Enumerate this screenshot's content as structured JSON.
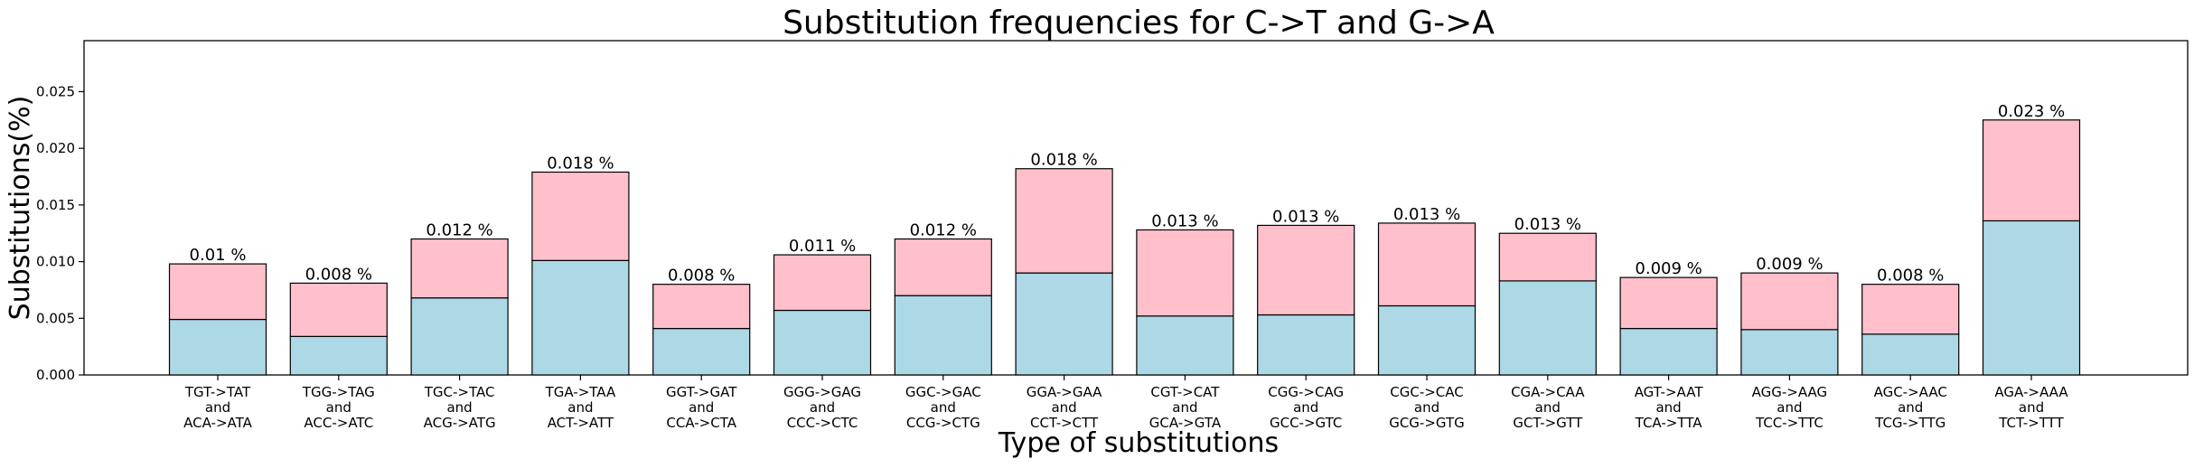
{
  "chart_data": {
    "type": "bar",
    "stacked": true,
    "title": "Substitution frequencies for C->T and G->A",
    "xlabel": "Type of substitutions",
    "ylabel": "Substitutions(%)",
    "ylim": [
      0,
      0.0295
    ],
    "yticks": [
      "0.000",
      "0.005",
      "0.010",
      "0.015",
      "0.020",
      "0.025"
    ],
    "grid": false,
    "colors": {
      "bottom": "#add8e6",
      "top": "#ffc0cb",
      "edge": "#000000"
    },
    "categories": [
      [
        "TGT->TAT",
        "and",
        "ACA->ATA"
      ],
      [
        "TGG->TAG",
        "and",
        "ACC->ATC"
      ],
      [
        "TGC->TAC",
        "and",
        "ACG->ATG"
      ],
      [
        "TGA->TAA",
        "and",
        "ACT->ATT"
      ],
      [
        "GGT->GAT",
        "and",
        "CCA->CTA"
      ],
      [
        "GGG->GAG",
        "and",
        "CCC->CTC"
      ],
      [
        "GGC->GAC",
        "and",
        "CCG->CTG"
      ],
      [
        "GGA->GAA",
        "and",
        "CCT->CTT"
      ],
      [
        "CGT->CAT",
        "and",
        "GCA->GTA"
      ],
      [
        "CGG->CAG",
        "and",
        "GCC->GTC"
      ],
      [
        "CGC->CAC",
        "and",
        "GCG->GTG"
      ],
      [
        "CGA->CAA",
        "and",
        "GCT->GTT"
      ],
      [
        "AGT->AAT",
        "and",
        "TCA->TTA"
      ],
      [
        "AGG->AAG",
        "and",
        "TCC->TTC"
      ],
      [
        "AGC->AAC",
        "and",
        "TCG->TTG"
      ],
      [
        "AGA->AAA",
        "and",
        "TCT->TTT"
      ]
    ],
    "series": [
      {
        "values": [
          0.0049,
          0.0034,
          0.0068,
          0.0101,
          0.0041,
          0.0057,
          0.007,
          0.009,
          0.0052,
          0.0053,
          0.0061,
          0.0083,
          0.0041,
          0.004,
          0.0036,
          0.0136
        ]
      },
      {
        "values": [
          0.0049,
          0.0047,
          0.0052,
          0.0078,
          0.0039,
          0.0049,
          0.005,
          0.0092,
          0.0076,
          0.0079,
          0.0073,
          0.0042,
          0.0045,
          0.005,
          0.0044,
          0.0089
        ]
      }
    ],
    "bar_labels": [
      "0.01 %",
      "0.008 %",
      "0.012 %",
      "0.018 %",
      "0.008 %",
      "0.011 %",
      "0.012 %",
      "0.018 %",
      "0.013 %",
      "0.013 %",
      "0.013 %",
      "0.013 %",
      "0.009 %",
      "0.009 %",
      "0.008 %",
      "0.023 %"
    ]
  }
}
